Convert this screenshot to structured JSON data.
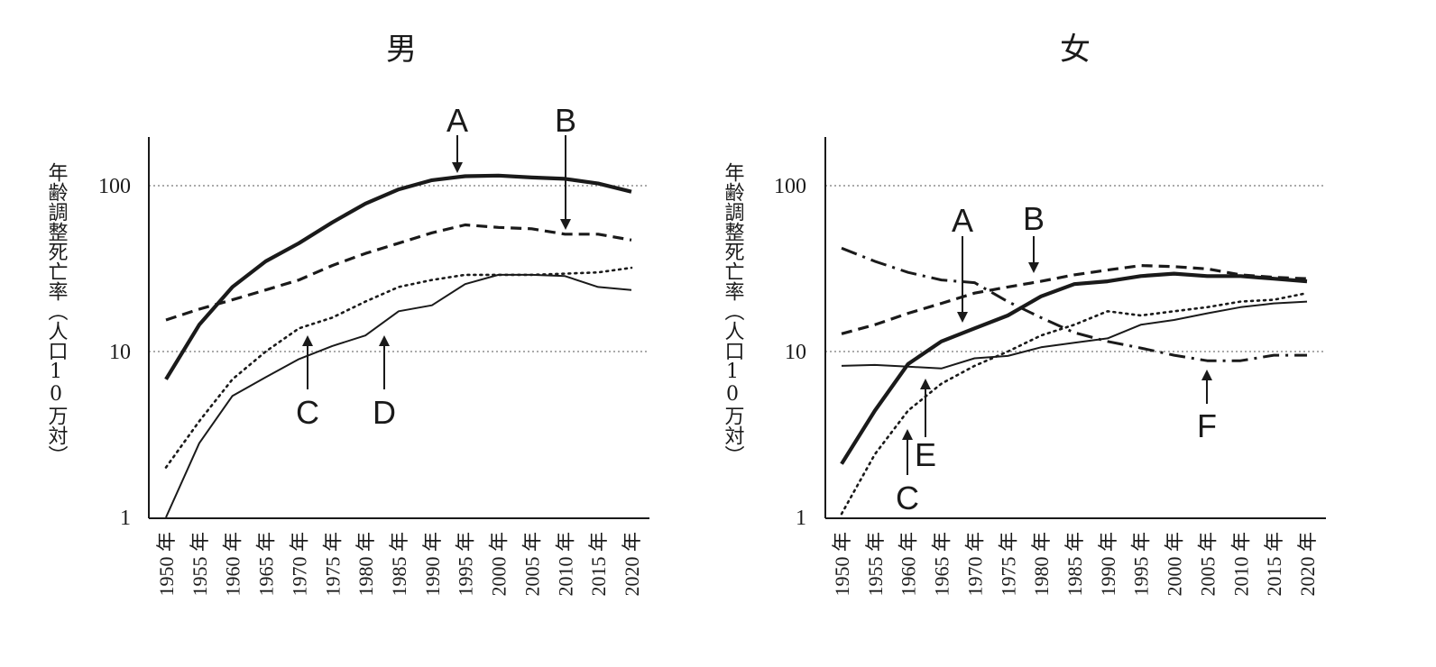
{
  "chart_data": [
    {
      "type": "line",
      "title": "男",
      "ylabel": "年齢調整死亡率（人口10万対）",
      "yscale": "log",
      "ylim": [
        1,
        200
      ],
      "yticks": [
        1,
        10,
        100
      ],
      "grid_values": [
        10,
        100
      ],
      "x": [
        1950,
        1955,
        1960,
        1965,
        1970,
        1975,
        1980,
        1985,
        1990,
        1995,
        2000,
        2005,
        2010,
        2015,
        2020
      ],
      "x_labels": [
        "1950 年",
        "1955 年",
        "1960 年",
        "1965 年",
        "1970 年",
        "1975 年",
        "1980 年",
        "1985 年",
        "1990 年",
        "1995 年",
        "2000 年",
        "2005 年",
        "2010 年",
        "2015 年",
        "2020 年"
      ],
      "series": [
        {
          "name": "A",
          "style": "thick-solid",
          "values": [
            6.8,
            14.5,
            24.5,
            35,
            45,
            60,
            78,
            95,
            108,
            114,
            115,
            112,
            110,
            103,
            92
          ]
        },
        {
          "name": "B",
          "style": "dashed",
          "values": [
            15.5,
            18,
            20.5,
            23.5,
            27,
            33,
            39,
            45,
            52,
            58,
            56,
            55,
            51,
            51,
            47
          ]
        },
        {
          "name": "C",
          "style": "dotted",
          "values": [
            2,
            3.8,
            6.8,
            10,
            13.8,
            16,
            20,
            24.5,
            27,
            29,
            29,
            29,
            29.5,
            30,
            32
          ]
        },
        {
          "name": "D",
          "style": "thin-solid",
          "values": [
            1,
            2.8,
            5.4,
            7,
            9,
            10.8,
            12.5,
            17.5,
            19,
            25.5,
            29,
            29,
            28.5,
            24.5,
            23.5
          ]
        }
      ],
      "annotations": [
        {
          "label": "A",
          "series": "A",
          "year": 1995
        },
        {
          "label": "B",
          "series": "B",
          "year": 2010
        },
        {
          "label": "C",
          "series": "C",
          "year": 1971
        },
        {
          "label": "D",
          "series": "D",
          "year": 1983
        }
      ]
    },
    {
      "type": "line",
      "title": "女",
      "ylabel": "年齢調整死亡率（人口10万対）",
      "yscale": "log",
      "ylim": [
        1,
        200
      ],
      "yticks": [
        1,
        10,
        100
      ],
      "grid_values": [
        10,
        100
      ],
      "x": [
        1950,
        1955,
        1960,
        1965,
        1970,
        1975,
        1980,
        1985,
        1990,
        1995,
        2000,
        2005,
        2010,
        2015,
        2020
      ],
      "x_labels": [
        "1950 年",
        "1955 年",
        "1960 年",
        "1965 年",
        "1970 年",
        "1975 年",
        "1980 年",
        "1985 年",
        "1990 年",
        "1995 年",
        "2000 年",
        "2005 年",
        "2010 年",
        "2015 年",
        "2020 年"
      ],
      "series": [
        {
          "name": "A",
          "style": "thick-solid",
          "values": [
            2.1,
            4.4,
            8.4,
            11.5,
            13.8,
            16.5,
            21.5,
            25.5,
            26.5,
            28.5,
            29.5,
            28.5,
            28.5,
            27.5,
            26.5
          ]
        },
        {
          "name": "B",
          "style": "dashed",
          "values": [
            12.8,
            14.5,
            17,
            19.5,
            22.5,
            24.5,
            26.5,
            29,
            31,
            33,
            32.5,
            31.5,
            29,
            28,
            27.5
          ]
        },
        {
          "name": "C",
          "style": "dotted",
          "values": [
            1.05,
            2.4,
            4.4,
            6.4,
            8.2,
            10,
            12.5,
            14.5,
            17.5,
            16.5,
            17.5,
            18.5,
            20,
            20.5,
            22.5
          ]
        },
        {
          "name": "E",
          "style": "thin-solid",
          "values": [
            8.2,
            8.3,
            8.1,
            7.9,
            9.1,
            9.4,
            10.6,
            11.3,
            12,
            14.5,
            15.5,
            17,
            18.5,
            19.5,
            20
          ]
        },
        {
          "name": "F",
          "style": "dash-dot",
          "values": [
            42,
            35,
            30,
            27,
            26,
            20,
            16,
            13,
            11.5,
            10.5,
            9.5,
            8.8,
            8.8,
            9.5,
            9.5
          ]
        }
      ],
      "annotations": [
        {
          "label": "A",
          "series": "A",
          "year": 1968
        },
        {
          "label": "B",
          "series": "B",
          "year": 1979
        },
        {
          "label": "C",
          "series": "C",
          "year": 1960
        },
        {
          "label": "E",
          "series": "E",
          "year": 1963
        },
        {
          "label": "F",
          "series": "F",
          "year": 2005
        }
      ]
    }
  ]
}
